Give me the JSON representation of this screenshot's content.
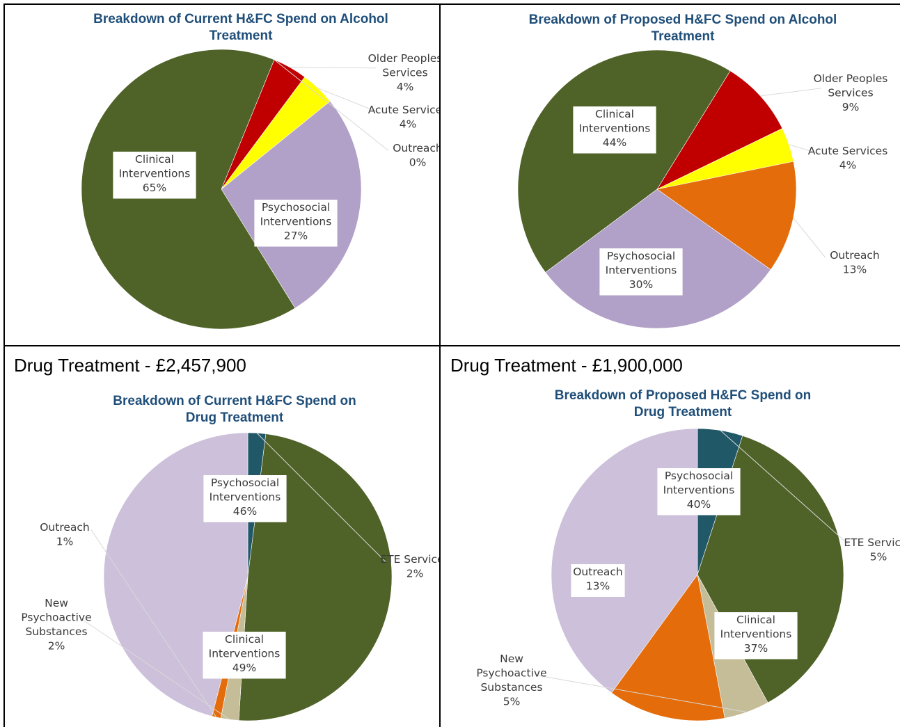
{
  "section_headings": {
    "drug_current": "Drug Treatment - £2,457,900",
    "drug_proposed": "Drug Treatment - £1,900,000"
  },
  "chart_data": [
    {
      "type": "pie",
      "title": "Breakdown of Current  H&FC Spend on Alcohol Treatment",
      "title_lines": [
        "Breakdown of Current  H&FC Spend on Alcohol",
        "Treatment"
      ],
      "slices": [
        {
          "name": "Older Peoples Services",
          "value": 4,
          "label": "4%",
          "color": "#C00000"
        },
        {
          "name": "Acute Services",
          "value": 4,
          "label": "4%",
          "color": "#FFFF00"
        },
        {
          "name": "Outreach",
          "value": 0,
          "label": "0%",
          "color": "#E46C0A"
        },
        {
          "name": "Psychosocial Interventions",
          "value": 27,
          "label": "27%",
          "color": "#B1A0C7"
        },
        {
          "name": "Clinical Interventions",
          "value": 65,
          "label": "65%",
          "color": "#4F6228"
        }
      ]
    },
    {
      "type": "pie",
      "title": "Breakdown of Proposed  H&FC Spend on Alcohol Treatment",
      "title_lines": [
        "Breakdown of Proposed  H&FC Spend on Alcohol",
        "Treatment"
      ],
      "slices": [
        {
          "name": "Older Peoples Services",
          "value": 9,
          "label": "9%",
          "color": "#C00000"
        },
        {
          "name": "Acute Services",
          "value": 4,
          "label": "4%",
          "color": "#FFFF00"
        },
        {
          "name": "Outreach",
          "value": 13,
          "label": "13%",
          "color": "#E46C0A"
        },
        {
          "name": "Psychosocial Interventions",
          "value": 30,
          "label": "30%",
          "color": "#B1A0C7"
        },
        {
          "name": "Clinical Interventions",
          "value": 44,
          "label": "44%",
          "color": "#4F6228"
        }
      ]
    },
    {
      "type": "pie",
      "title": "Breakdown of Current  H&FC Spend on Drug Treatment",
      "title_lines": [
        "Breakdown of Current  H&FC Spend on",
        "Drug Treatment"
      ],
      "slices": [
        {
          "name": "ETE Services",
          "value": 2,
          "label": "2%",
          "color": "#215868"
        },
        {
          "name": "Clinical Interventions",
          "value": 49,
          "label": "49%",
          "color": "#4F6228"
        },
        {
          "name": "New Psychoactive Substances",
          "value": 2,
          "label": "2%",
          "color": "#C4BD97"
        },
        {
          "name": "Outreach",
          "value": 1,
          "label": "1%",
          "color": "#E46C0A"
        },
        {
          "name": "Psychosocial Interventions",
          "value": 46,
          "label": "46%",
          "color": "#CCC0DA"
        }
      ]
    },
    {
      "type": "pie",
      "title": "Breakdown of Proposed  H&FC Spend on Drug Treatment",
      "title_lines": [
        "Breakdown of Proposed  H&FC Spend on",
        "Drug Treatment"
      ],
      "slices": [
        {
          "name": "ETE Services",
          "value": 5,
          "label": "5%",
          "color": "#215868"
        },
        {
          "name": "Clinical Interventions",
          "value": 37,
          "label": "37%",
          "color": "#4F6228"
        },
        {
          "name": "New Psychoactive Substances",
          "value": 5,
          "label": "5%",
          "color": "#C4BD97"
        },
        {
          "name": "Outreach",
          "value": 13,
          "label": "13%",
          "color": "#E46C0A"
        },
        {
          "name": "Psychosocial Interventions",
          "value": 40,
          "label": "40%",
          "color": "#CCC0DA"
        }
      ]
    }
  ]
}
